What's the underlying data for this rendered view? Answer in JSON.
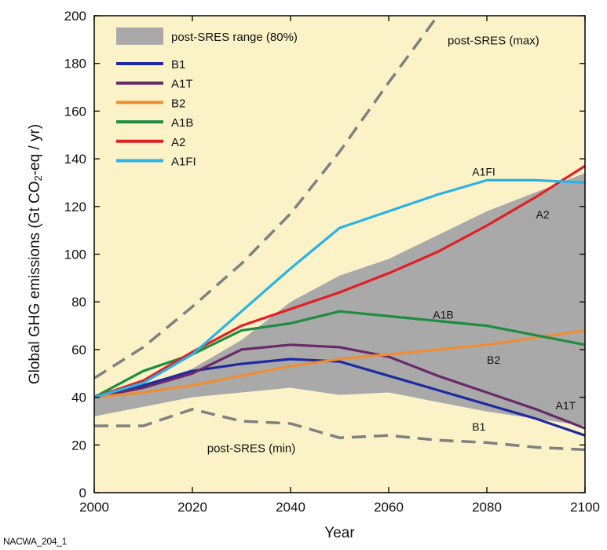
{
  "chart_data": {
    "type": "line",
    "xlabel": "Year",
    "ylabel_pre": "Global GHG emissions (Gt CO",
    "ylabel_sub": "2",
    "ylabel_post": "-eq / yr)",
    "xlim": [
      2000,
      2100
    ],
    "ylim": [
      0,
      200
    ],
    "x_ticks": [
      2000,
      2020,
      2040,
      2060,
      2080,
      2100
    ],
    "y_ticks": [
      0,
      20,
      40,
      60,
      80,
      100,
      120,
      140,
      160,
      180,
      200
    ],
    "grid": false,
    "legend_position": "top-left",
    "legend": {
      "range_label": "post-SRES range (80%)",
      "entries": [
        "B1",
        "A1T",
        "B2",
        "A1B",
        "A2",
        "A1FI"
      ]
    },
    "colors": {
      "plot_bg": "#fbf2c8",
      "range_fill": "#a9a9a9",
      "dashed": "#808080",
      "B1": "#1f2aa0",
      "A1T": "#6a2a6a",
      "B2": "#f08c30",
      "A1B": "#1f8c42",
      "A2": "#e02025",
      "A1FI": "#29b3e6"
    },
    "range_band": {
      "x": [
        2000,
        2010,
        2020,
        2030,
        2040,
        2050,
        2060,
        2070,
        2080,
        2090,
        2100
      ],
      "upper": [
        41,
        45,
        52,
        64,
        80,
        91,
        98,
        108,
        118,
        126,
        134
      ],
      "lower": [
        32,
        36,
        40,
        42,
        44,
        41,
        42,
        38,
        34,
        31,
        28
      ]
    },
    "series": [
      {
        "name": "B1",
        "x": [
          2000,
          2010,
          2020,
          2030,
          2040,
          2050,
          2060,
          2070,
          2080,
          2090,
          2100
        ],
        "values": [
          40,
          45,
          51,
          54,
          56,
          55,
          49,
          43,
          37,
          31,
          24
        ]
      },
      {
        "name": "A1T",
        "x": [
          2000,
          2010,
          2020,
          2030,
          2040,
          2050,
          2060,
          2070,
          2080,
          2090,
          2100
        ],
        "values": [
          40,
          44,
          50,
          60,
          62,
          61,
          57,
          49,
          42,
          35,
          27
        ]
      },
      {
        "name": "B2",
        "x": [
          2000,
          2010,
          2020,
          2030,
          2040,
          2050,
          2060,
          2070,
          2080,
          2090,
          2100
        ],
        "values": [
          40,
          42,
          45,
          49,
          53,
          56,
          58,
          60,
          62,
          65,
          68
        ]
      },
      {
        "name": "A1B",
        "x": [
          2000,
          2010,
          2020,
          2030,
          2040,
          2050,
          2060,
          2070,
          2080,
          2090,
          2100
        ],
        "values": [
          40,
          51,
          58,
          68,
          71,
          76,
          74,
          72,
          70,
          66,
          62
        ]
      },
      {
        "name": "A2",
        "x": [
          2000,
          2010,
          2020,
          2030,
          2040,
          2050,
          2060,
          2070,
          2080,
          2090,
          2100
        ],
        "values": [
          40,
          47,
          59,
          70,
          77,
          84,
          92,
          101,
          112,
          124,
          137
        ]
      },
      {
        "name": "A1FI",
        "x": [
          2000,
          2010,
          2020,
          2030,
          2040,
          2050,
          2060,
          2070,
          2080,
          2090,
          2100
        ],
        "values": [
          40,
          46,
          58,
          76,
          94,
          111,
          118,
          125,
          131,
          131,
          130
        ]
      },
      {
        "name": "post-SRES (max)",
        "style": "dashed",
        "x": [
          2000,
          2010,
          2020,
          2030,
          2040,
          2050,
          2060,
          2070
        ],
        "values": [
          48,
          61,
          78,
          96,
          117,
          143,
          172,
          200
        ]
      },
      {
        "name": "post-SRES (min)",
        "style": "dashed",
        "x": [
          2000,
          2010,
          2020,
          2030,
          2040,
          2050,
          2060,
          2070,
          2080,
          2090,
          2100
        ],
        "values": [
          28,
          28,
          35,
          30,
          29,
          23,
          24,
          22,
          21,
          19,
          18
        ]
      }
    ],
    "annotations": [
      {
        "text": "post-SRES (max)",
        "x": 2072,
        "y": 188,
        "size": "lg"
      },
      {
        "text": "post-SRES (min)",
        "x": 2023,
        "y": 17,
        "size": "lg"
      },
      {
        "text": "A1FI",
        "x": 2077,
        "y": 133,
        "size": "sm"
      },
      {
        "text": "A2",
        "x": 2090,
        "y": 115,
        "size": "sm"
      },
      {
        "text": "A1B",
        "x": 2069,
        "y": 73,
        "size": "sm"
      },
      {
        "text": "B2",
        "x": 2080,
        "y": 54,
        "size": "sm"
      },
      {
        "text": "A1T",
        "x": 2094,
        "y": 35,
        "size": "sm"
      },
      {
        "text": "B1",
        "x": 2077,
        "y": 26,
        "size": "sm"
      }
    ]
  },
  "footer": "NACWA_204_1"
}
